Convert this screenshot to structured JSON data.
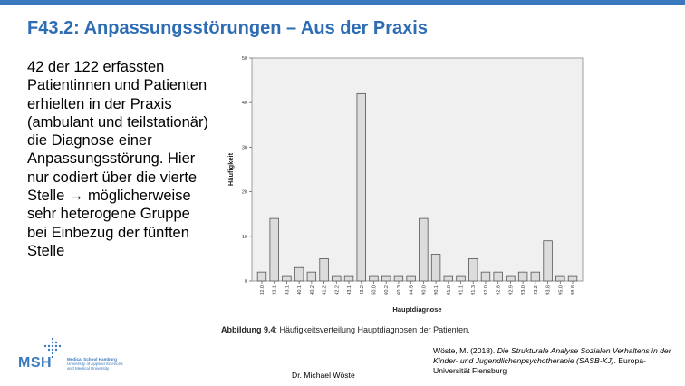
{
  "slide": {
    "title": "F43.2: Anpassungsstörungen – Aus der Praxis",
    "body_text": "42 der 122 erfassten Patientinnen und Patienten erhielten in der Praxis (ambulant und teilstationär) die Diagnose einer Anpassungsstörung. Hier nur codiert über die vierte Stelle → möglicherweise sehr heterogene Gruppe bei Einbezug der fünften Stelle",
    "caption_label": "Abbildung 9.4",
    "caption_text": ": Häufigkeitsverteilung Hauptdiagnosen der Patienten.",
    "citation_pre": "Wöste, M. (2018). ",
    "citation_italic": "Die Strukturale Analyse Sozialen Verhaltens in der Kinder- und Jugendlichenpsychotherapie (SASB-KJ)",
    "citation_post": ". Europa-Universität Flensburg",
    "author": "Dr. Michael Wöste",
    "accent_color": "#3a79be",
    "title_color": "#2e6db3",
    "logo": {
      "name": "MSH",
      "line1": "Medical School Hamburg",
      "line2": "University of Applied Sciences",
      "line3": "and Medical University"
    }
  },
  "chart_data": {
    "type": "bar",
    "xlabel": "Hauptdiagnose",
    "ylabel": "Häufigkeit",
    "ylim": [
      0,
      50
    ],
    "yticks": [
      0,
      10,
      20,
      30,
      40,
      50
    ],
    "grid": false,
    "categories": [
      "32.0",
      "32.1",
      "33.1",
      "40.1",
      "40.2",
      "41.2",
      "42.2",
      "43.1",
      "43.2",
      "50.0",
      "60.2",
      "60.3",
      "84.5",
      "90.0",
      "90.1",
      "91.0",
      "91.1",
      "91.3",
      "92.0",
      "92.8",
      "92.9",
      "93.0",
      "93.2",
      "93.8",
      "95.0",
      "98.8"
    ],
    "values": [
      2,
      14,
      1,
      3,
      2,
      5,
      1,
      1,
      42,
      1,
      1,
      1,
      1,
      14,
      6,
      1,
      1,
      5,
      2,
      2,
      1,
      2,
      2,
      9,
      1,
      1
    ],
    "bar_color": "#dcdcdc",
    "bar_edge_color": "#555555",
    "plot_background": "#f0f0f0"
  }
}
